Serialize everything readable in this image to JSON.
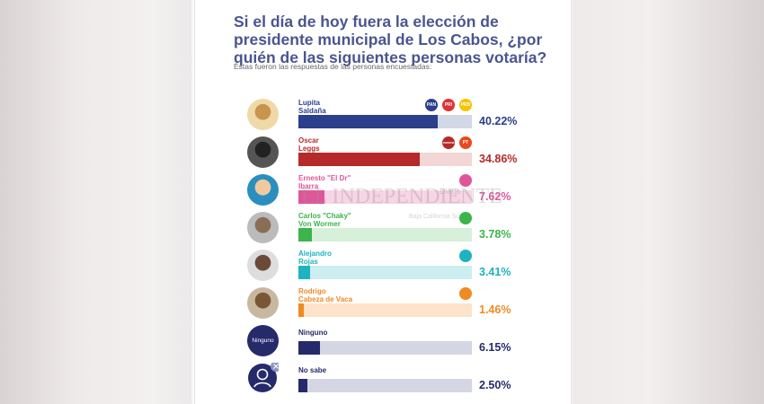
{
  "title": "Si el día de hoy fuera la elección de presidente municipal de Los Cabos, ¿por quién de las siguientes personas votaría?",
  "subtitle": "Éstas fueron las respuestas de las personas encuestadas:",
  "watermark": {
    "top": "Diario",
    "main": "EL INDEPENDIENTE",
    "bottom": "Baja California Sur"
  },
  "chart_data": {
    "type": "bar",
    "orientation": "horizontal",
    "title": "Si el día de hoy fuera la elección de presidente municipal de Los Cabos, ¿por quién de las siguientes personas votaría?",
    "xlim": [
      0,
      50
    ],
    "categories": [
      "Lupita Saldaña",
      "Oscar Leggs",
      "Ernesto \"El Dr\" Ibarra",
      "Carlos \"Chaky\" Von Wormer",
      "Alejandro Rojas",
      "Rodrigo Cabeza de Vaca",
      "Ninguno",
      "No sabe"
    ],
    "values": [
      40.22,
      34.86,
      7.62,
      3.78,
      3.41,
      1.46,
      6.15,
      2.5
    ],
    "labels": [
      "40.22%",
      "34.86%",
      "7.62%",
      "3.78%",
      "3.41%",
      "1.46%",
      "6.15%",
      "2.50%"
    ]
  },
  "rows": [
    {
      "name1": "Lupita",
      "name2": "Saldaña",
      "color": "#2b3f8c",
      "track": "#d3d8e8",
      "photo": [
        "#f0d9a8",
        "#c9944f"
      ],
      "logos": [
        {
          "c": "#2b3f8c",
          "t": "PAN"
        },
        {
          "c": "#d33",
          "t": "PRI"
        },
        {
          "c": "#f2c500",
          "t": "PRD"
        }
      ]
    },
    {
      "name1": "Oscar",
      "name2": "Leggs",
      "color": "#b52a2a",
      "track": "#f3d6d6",
      "photo": [
        "#555",
        "#222"
      ],
      "logos": [
        {
          "c": "#b52a2a",
          "t": "morena"
        },
        {
          "c": "#e8491d",
          "t": "PT"
        }
      ]
    },
    {
      "name1": "Ernesto \"El Dr\"",
      "name2": "Ibarra",
      "color": "#e0559a",
      "track": "#f8d5e6",
      "photo": [
        "#2a8fc0",
        "#f0c9a0"
      ],
      "logos": [
        {
          "c": "#e0559a",
          "t": ""
        }
      ]
    },
    {
      "name1": "Carlos \"Chaky\"",
      "name2": "Von Wormer",
      "color": "#3bb54a",
      "track": "#d6f0d9",
      "photo": [
        "#bbb",
        "#8a6d55"
      ],
      "logos": [
        {
          "c": "#3bb54a",
          "t": ""
        }
      ]
    },
    {
      "name1": "Alejandro",
      "name2": "Rojas",
      "color": "#1db3c0",
      "track": "#cdeef1",
      "photo": [
        "#ddd",
        "#6b4a3a"
      ],
      "logos": [
        {
          "c": "#1db3c0",
          "t": ""
        }
      ]
    },
    {
      "name1": "Rodrigo",
      "name2": "Cabeza de Vaca",
      "color": "#f08a24",
      "track": "#fde3ca",
      "photo": [
        "#c8b8a0",
        "#7a5638"
      ],
      "logos": [
        {
          "c": "#f08a24",
          "t": ""
        }
      ]
    },
    {
      "name1": "Ninguno",
      "name2": "",
      "color": "#252a6b",
      "track": "#d5d6e3",
      "badge": "Ninguno",
      "logos": []
    },
    {
      "name1": "No sabe",
      "name2": "",
      "color": "#252a6b",
      "track": "#d5d6e3",
      "logos": []
    }
  ]
}
